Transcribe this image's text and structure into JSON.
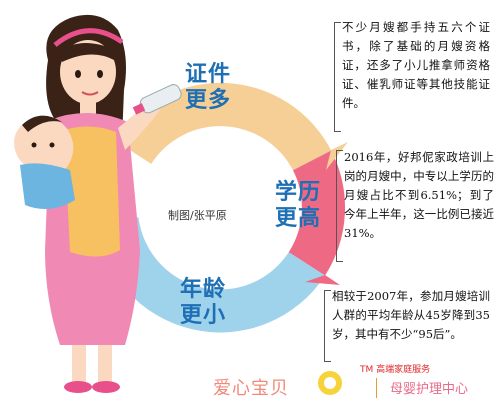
{
  "segments": {
    "top": {
      "line1": "证件",
      "line2": "更多",
      "color": "#1e6fb4"
    },
    "right": {
      "line1": "学历",
      "line2": "更高",
      "color": "#1e6fb4"
    },
    "bottom": {
      "line1": "年龄",
      "line2": "更小",
      "color": "#1e6fb4"
    }
  },
  "credit": "制图/张平原",
  "notes": [
    {
      "text": "不少月嫂都手持五六个证书，除了基础的月嫂资格证，还多了小儿推拿师资格证、催乳师证等其他技能证件。"
    },
    {
      "text": "2016年，好邦伲家政培训上岗的月嫂中，中专以上学历的月嫂占比不到6.51%；到了今年上半年，这一比例已接近31%。"
    },
    {
      "text": "相较于2007年，参加月嫂培训人群的平均年龄从45岁降到35岁，其中有不少“95后”。"
    }
  ],
  "footer": {
    "left_text": "爱心宝贝",
    "tm_text": "TM 高端家庭服务",
    "right_text": "母婴护理中心"
  },
  "colors": {
    "ring_top": "#f5cf96",
    "ring_right": "#ee6a84",
    "ring_bottom": "#9fd3ec",
    "brand_red": "#e2262a"
  }
}
